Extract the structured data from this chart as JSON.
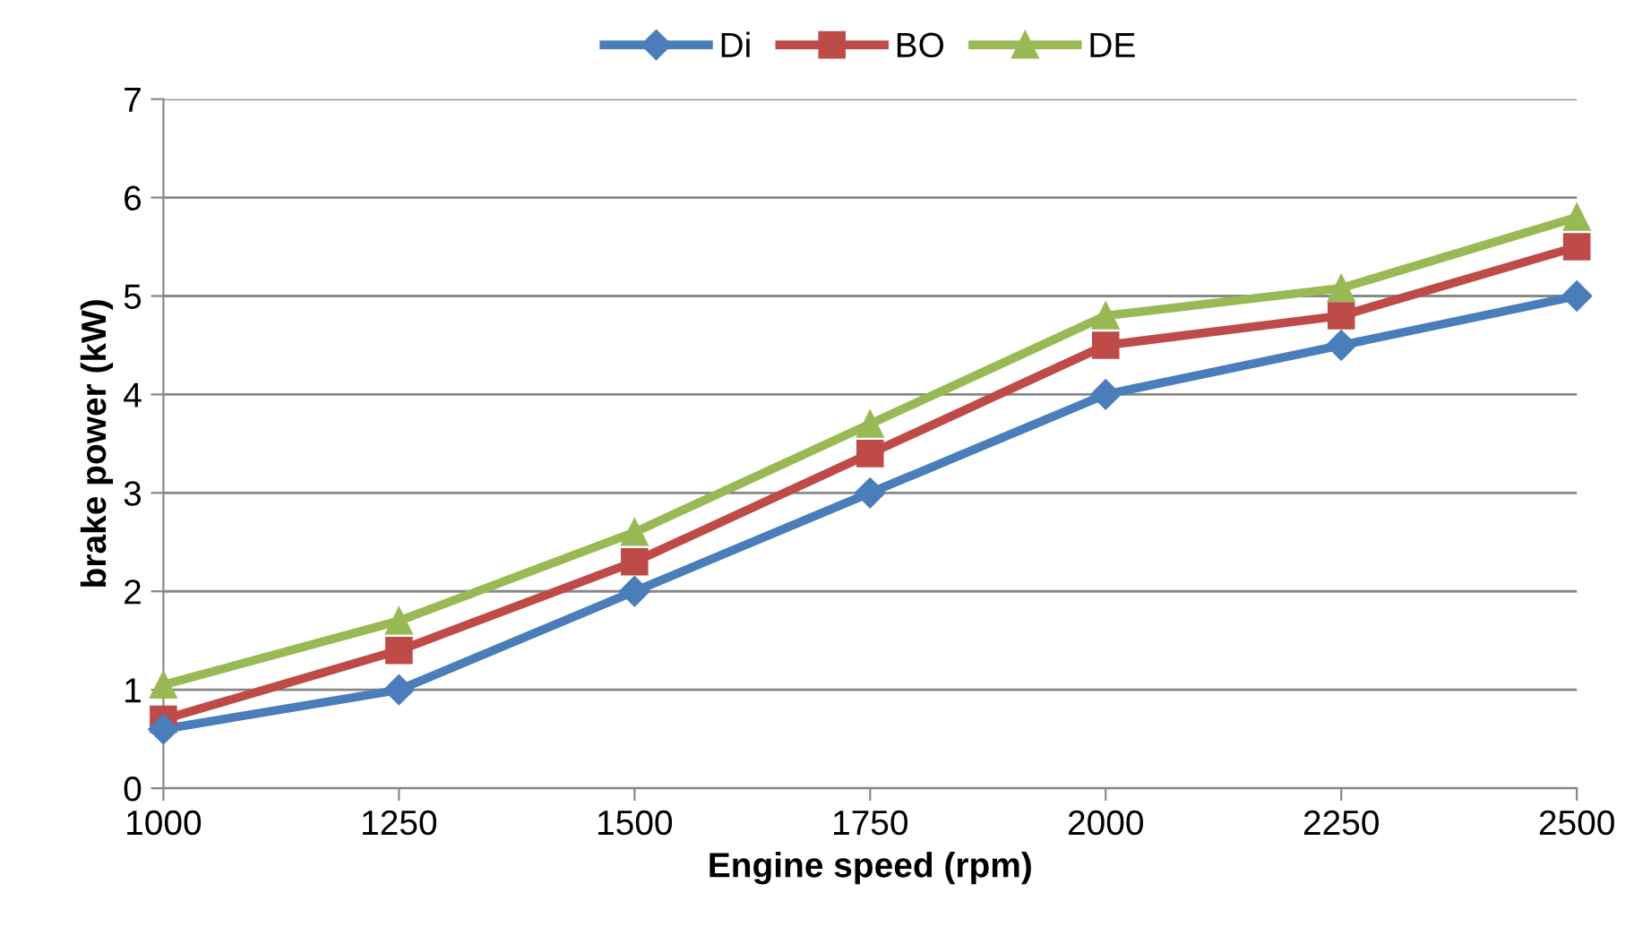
{
  "chart_data": {
    "type": "line",
    "xlabel": "Engine speed (rpm)",
    "ylabel": "brake power (kW)",
    "x": [
      1000,
      1250,
      1500,
      1750,
      2000,
      2250,
      2500
    ],
    "series": [
      {
        "name": "Di",
        "color": "#4a7ebb",
        "marker": "diamond",
        "values": [
          0.6,
          1.0,
          2.0,
          3.0,
          4.0,
          4.5,
          5.0
        ]
      },
      {
        "name": "BO",
        "color": "#be4b48",
        "marker": "square",
        "values": [
          0.7,
          1.4,
          2.3,
          3.4,
          4.5,
          4.8,
          5.5
        ]
      },
      {
        "name": "DE",
        "color": "#98b954",
        "marker": "triangle",
        "values": [
          1.05,
          1.7,
          2.6,
          3.7,
          4.8,
          5.08,
          5.8
        ]
      }
    ],
    "xlim": [
      1000,
      2500
    ],
    "xticks": [
      1000,
      1250,
      1500,
      1750,
      2000,
      2250,
      2500
    ],
    "ylim": [
      0,
      7
    ],
    "yticks": [
      0,
      1,
      2,
      3,
      4,
      5,
      6,
      7
    ],
    "grid": "y",
    "legend": "top",
    "line_style": "solid"
  }
}
